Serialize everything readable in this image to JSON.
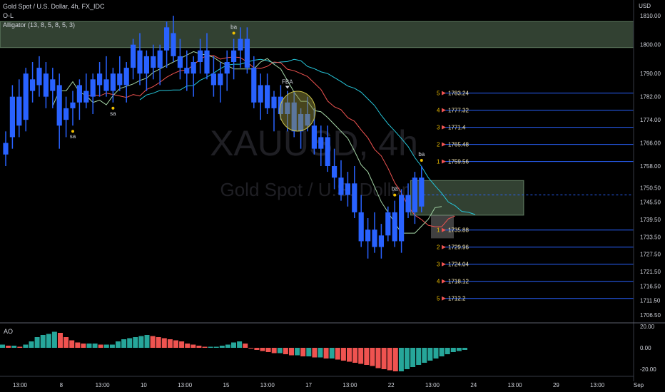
{
  "header": {
    "symbol_line": "Gold Spot / U.S. Dollar, 4h, FX_IDC",
    "line2": "O-L",
    "line3": "Alligator (13, 8, 5, 8, 5, 3)"
  },
  "currency": "USD",
  "watermark": {
    "symbol": "XAUUSD, 4h",
    "name": "Gold Spot / U.S. Dollar"
  },
  "ao_label": "AO",
  "colors": {
    "candle": "#2962ff",
    "alligator_jaw": "#26c6da",
    "alligator_teeth": "#ef5350",
    "alligator_lips": "#a5d6a7",
    "ao_up": "#26a69a",
    "ao_down": "#ef5350",
    "level_line": "#2962ff",
    "zone_fill": "#a5d6a7"
  },
  "chart_data": [
    {
      "type": "candlestick",
      "y_axis": {
        "ticks": [
          1810.0,
          1800.0,
          1790.0,
          1782.0,
          1774.0,
          1766.0,
          1758.0,
          1750.5,
          1745.5,
          1739.5,
          1733.5,
          1727.5,
          1721.5,
          1716.5,
          1711.5,
          1706.5
        ],
        "tick_labels": [
          "1810.00",
          "1800.00",
          "1790.00",
          "1782.00",
          "1774.00",
          "1766.00",
          "1758.00",
          "1750.50",
          "1745.50",
          "1739.50",
          "1733.50",
          "1727.50",
          "1721.50",
          "1716.50",
          "1711.50",
          "1706.50"
        ]
      },
      "x_axis": {
        "tick_labels": [
          "13:00",
          "8",
          "13:00",
          "10",
          "13:00",
          "15",
          "13:00",
          "17",
          "13:00",
          "22",
          "13:00",
          "24",
          "13:00",
          "29",
          "13:00",
          "Sep"
        ]
      },
      "candles_ohlc": [
        [
          1762,
          1770,
          1758,
          1766
        ],
        [
          1768,
          1786,
          1764,
          1782
        ],
        [
          1782,
          1788,
          1768,
          1772
        ],
        [
          1774,
          1792,
          1770,
          1790
        ],
        [
          1788,
          1794,
          1780,
          1784
        ],
        [
          1786,
          1796,
          1782,
          1792
        ],
        [
          1790,
          1794,
          1778,
          1782
        ],
        [
          1784,
          1792,
          1778,
          1788
        ],
        [
          1786,
          1790,
          1764,
          1772
        ],
        [
          1774,
          1782,
          1768,
          1778
        ],
        [
          1778,
          1784,
          1772,
          1780
        ],
        [
          1780,
          1788,
          1774,
          1786
        ],
        [
          1784,
          1790,
          1778,
          1780
        ],
        [
          1782,
          1790,
          1776,
          1788
        ],
        [
          1786,
          1794,
          1782,
          1790
        ],
        [
          1788,
          1796,
          1782,
          1784
        ],
        [
          1784,
          1792,
          1780,
          1790
        ],
        [
          1790,
          1796,
          1784,
          1786
        ],
        [
          1786,
          1794,
          1780,
          1792
        ],
        [
          1792,
          1802,
          1788,
          1800
        ],
        [
          1798,
          1804,
          1786,
          1790
        ],
        [
          1790,
          1798,
          1784,
          1796
        ],
        [
          1796,
          1800,
          1788,
          1792
        ],
        [
          1792,
          1800,
          1786,
          1798
        ],
        [
          1798,
          1808,
          1792,
          1806
        ],
        [
          1804,
          1810,
          1794,
          1796
        ],
        [
          1796,
          1802,
          1788,
          1792
        ],
        [
          1792,
          1798,
          1784,
          1790
        ],
        [
          1790,
          1796,
          1782,
          1794
        ],
        [
          1794,
          1802,
          1790,
          1798
        ],
        [
          1798,
          1804,
          1788,
          1790
        ],
        [
          1790,
          1796,
          1782,
          1786
        ],
        [
          1786,
          1794,
          1780,
          1790
        ],
        [
          1790,
          1798,
          1784,
          1794
        ],
        [
          1794,
          1802,
          1788,
          1798
        ],
        [
          1798,
          1806,
          1792,
          1802
        ],
        [
          1802,
          1806,
          1790,
          1792
        ],
        [
          1792,
          1796,
          1778,
          1780
        ],
        [
          1780,
          1790,
          1774,
          1786
        ],
        [
          1786,
          1790,
          1776,
          1778
        ],
        [
          1778,
          1784,
          1770,
          1782
        ],
        [
          1782,
          1786,
          1774,
          1776
        ],
        [
          1776,
          1784,
          1770,
          1780
        ],
        [
          1780,
          1784,
          1768,
          1770
        ],
        [
          1770,
          1778,
          1764,
          1776
        ],
        [
          1776,
          1782,
          1770,
          1772
        ],
        [
          1772,
          1778,
          1762,
          1764
        ],
        [
          1764,
          1772,
          1758,
          1768
        ],
        [
          1768,
          1772,
          1756,
          1758
        ],
        [
          1758,
          1764,
          1750,
          1754
        ],
        [
          1754,
          1760,
          1746,
          1748
        ],
        [
          1748,
          1756,
          1744,
          1752
        ],
        [
          1752,
          1758,
          1740,
          1742
        ],
        [
          1742,
          1748,
          1730,
          1732
        ],
        [
          1732,
          1740,
          1726,
          1736
        ],
        [
          1736,
          1742,
          1728,
          1730
        ],
        [
          1730,
          1738,
          1726,
          1734
        ],
        [
          1734,
          1744,
          1732,
          1742
        ],
        [
          1742,
          1746,
          1730,
          1732
        ],
        [
          1732,
          1750,
          1728,
          1748
        ],
        [
          1748,
          1752,
          1740,
          1742
        ],
        [
          1742,
          1756,
          1738,
          1754
        ],
        [
          1754,
          1758,
          1742,
          1744
        ]
      ],
      "markers": [
        {
          "label": "sa",
          "candle": 10
        },
        {
          "label": "sa",
          "candle": 16
        },
        {
          "label": "ba",
          "candle": 34
        },
        {
          "label": "FBA",
          "candle": 42
        },
        {
          "label": "ba",
          "candle": 58
        },
        {
          "label": "ba",
          "candle": 62
        }
      ],
      "levels": [
        {
          "n": "5",
          "price": 1783.24,
          "label": "1783.24"
        },
        {
          "n": "4",
          "price": 1777.32,
          "label": "1777.32"
        },
        {
          "n": "3",
          "price": 1771.4,
          "label": "1771.4"
        },
        {
          "n": "2",
          "price": 1765.48,
          "label": "1765.48"
        },
        {
          "n": "1",
          "price": 1759.56,
          "label": "1759.56"
        },
        {
          "n": "1",
          "price": 1735.88,
          "label": "1735.88"
        },
        {
          "n": "2",
          "price": 1729.96,
          "label": "1729.96"
        },
        {
          "n": "3",
          "price": 1724.04,
          "label": "1724.04"
        },
        {
          "n": "4",
          "price": 1718.12,
          "label": "1718.12"
        },
        {
          "n": "5",
          "price": 1712.2,
          "label": "1712.2"
        }
      ],
      "zones": [
        {
          "top": 1808,
          "bottom": 1799
        },
        {
          "top": 1753,
          "bottom": 1741
        }
      ]
    },
    {
      "type": "bar",
      "name": "AO",
      "y_axis": {
        "ticks": [
          20,
          0,
          -20
        ],
        "tick_labels": [
          "20.00",
          "0.00",
          "-20.00"
        ]
      },
      "values": [
        3,
        2,
        2,
        1,
        3,
        6,
        10,
        12,
        13,
        15,
        14,
        10,
        7,
        5,
        4,
        4,
        4,
        3,
        3,
        3,
        6,
        8,
        9,
        10,
        11,
        12,
        11,
        10,
        9,
        8,
        7,
        6,
        4,
        3,
        2,
        1,
        1,
        1,
        2,
        3,
        5,
        6,
        4,
        0,
        -2,
        -3,
        -4,
        -5,
        -5,
        -6,
        -7,
        -7,
        -8,
        -8,
        -9,
        -9,
        -10,
        -10,
        -11,
        -12,
        -13,
        -14,
        -15,
        -16,
        -17,
        -19,
        -20,
        -21,
        -22,
        -22,
        -20,
        -18,
        -16,
        -14,
        -12,
        -10,
        -8,
        -6,
        -4,
        -3,
        -2
      ]
    }
  ]
}
